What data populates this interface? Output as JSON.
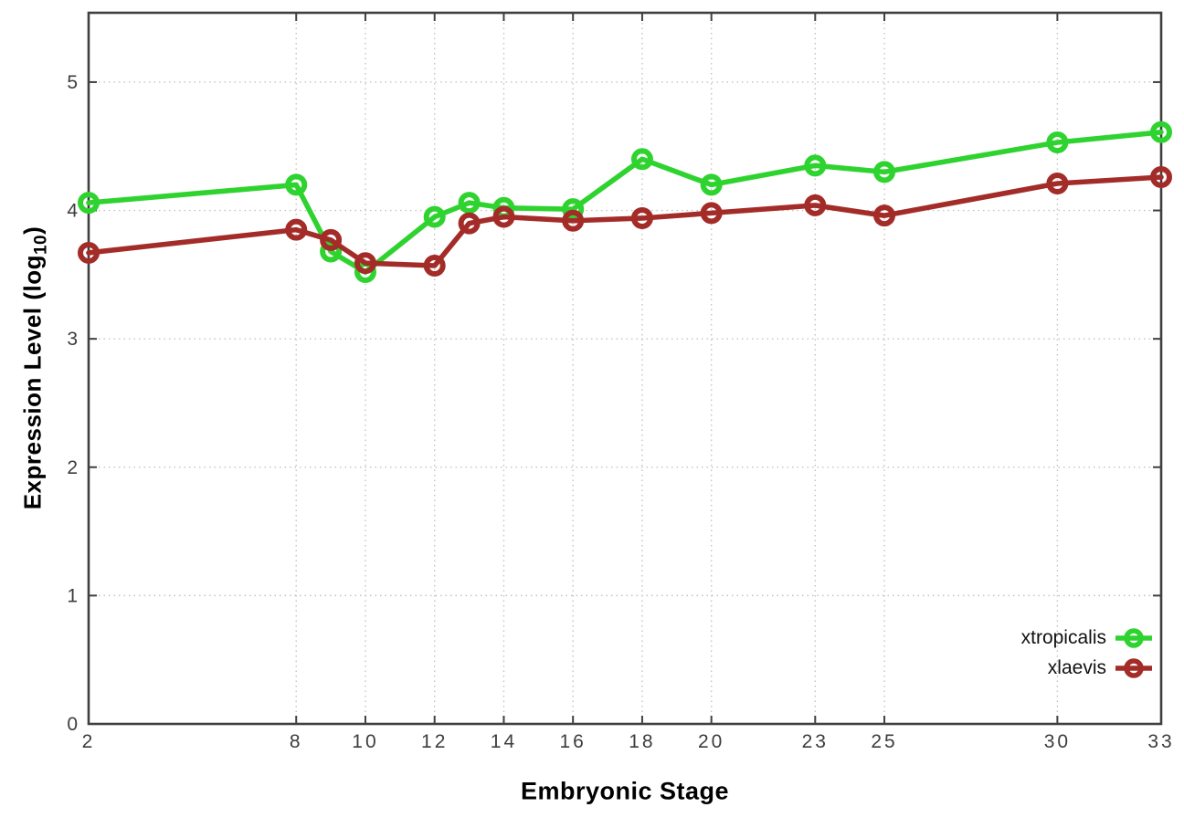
{
  "chart_data": {
    "type": "line",
    "title": "",
    "xlabel": "Embryonic Stage",
    "ylabel": "Expression Level (log10)",
    "ylabel_parts": {
      "main": "Expression Level (log",
      "sub": "10",
      "end": ")"
    },
    "x": [
      2,
      8,
      9,
      10,
      12,
      13,
      14,
      16,
      18,
      20,
      23,
      25,
      30,
      33
    ],
    "series": [
      {
        "name": "xtropicalis",
        "color": "#2fd32f",
        "values": [
          4.06,
          4.2,
          3.68,
          3.52,
          3.95,
          4.06,
          4.02,
          4.01,
          4.4,
          4.2,
          4.35,
          4.3,
          4.53,
          4.61
        ]
      },
      {
        "name": "xlaevis",
        "color": "#a32c28",
        "values": [
          3.67,
          3.85,
          3.77,
          3.59,
          3.57,
          3.9,
          3.95,
          3.92,
          3.94,
          3.98,
          4.04,
          3.96,
          4.21,
          4.26
        ]
      }
    ],
    "x_ticks": [
      2,
      8,
      10,
      12,
      14,
      16,
      18,
      20,
      23,
      25,
      30,
      33
    ],
    "y_ticks": [
      0,
      1,
      2,
      3,
      4,
      5
    ],
    "xlim": [
      2,
      33
    ],
    "ylim": [
      0,
      5.54
    ],
    "grid": true,
    "legend_position": "inside-bottom-right",
    "marker": "open-circle",
    "colors": {
      "background": "#ffffff",
      "axis": "#404040",
      "grid": "#c3c3c3",
      "tick_label": "#3d3d3d",
      "axis_title": "#000000"
    }
  }
}
